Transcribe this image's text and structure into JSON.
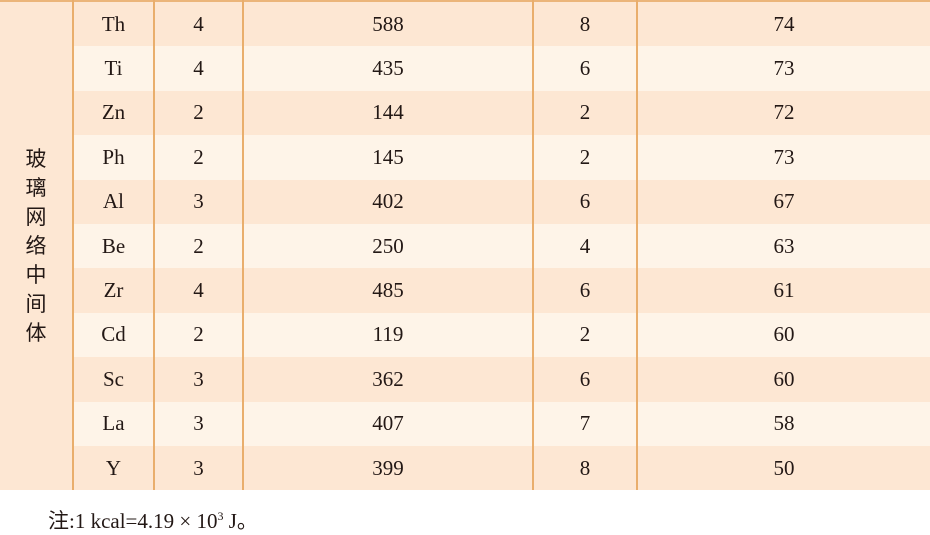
{
  "table": {
    "group_label": "玻璃网络中间体",
    "rows": [
      [
        "Th",
        "4",
        "588",
        "8",
        "74"
      ],
      [
        "Ti",
        "4",
        "435",
        "6",
        "73"
      ],
      [
        "Zn",
        "2",
        "144",
        "2",
        "72"
      ],
      [
        "Ph",
        "2",
        "145",
        "2",
        "73"
      ],
      [
        "Al",
        "3",
        "402",
        "6",
        "67"
      ],
      [
        "Be",
        "2",
        "250",
        "4",
        "63"
      ],
      [
        "Zr",
        "4",
        "485",
        "6",
        "61"
      ],
      [
        "Cd",
        "2",
        "119",
        "2",
        "60"
      ],
      [
        "Sc",
        "3",
        "362",
        "6",
        "60"
      ],
      [
        "La",
        "3",
        "407",
        "7",
        "58"
      ],
      [
        "Y",
        "3",
        "399",
        "8",
        "50"
      ]
    ]
  },
  "note": {
    "prefix": "注:1 kcal=4.19 × 10",
    "exp": "3",
    "suffix": " J。"
  },
  "colors": {
    "row_dark": "#fde7d3",
    "row_light": "#fef4e8",
    "border": "#e9ae6c"
  }
}
